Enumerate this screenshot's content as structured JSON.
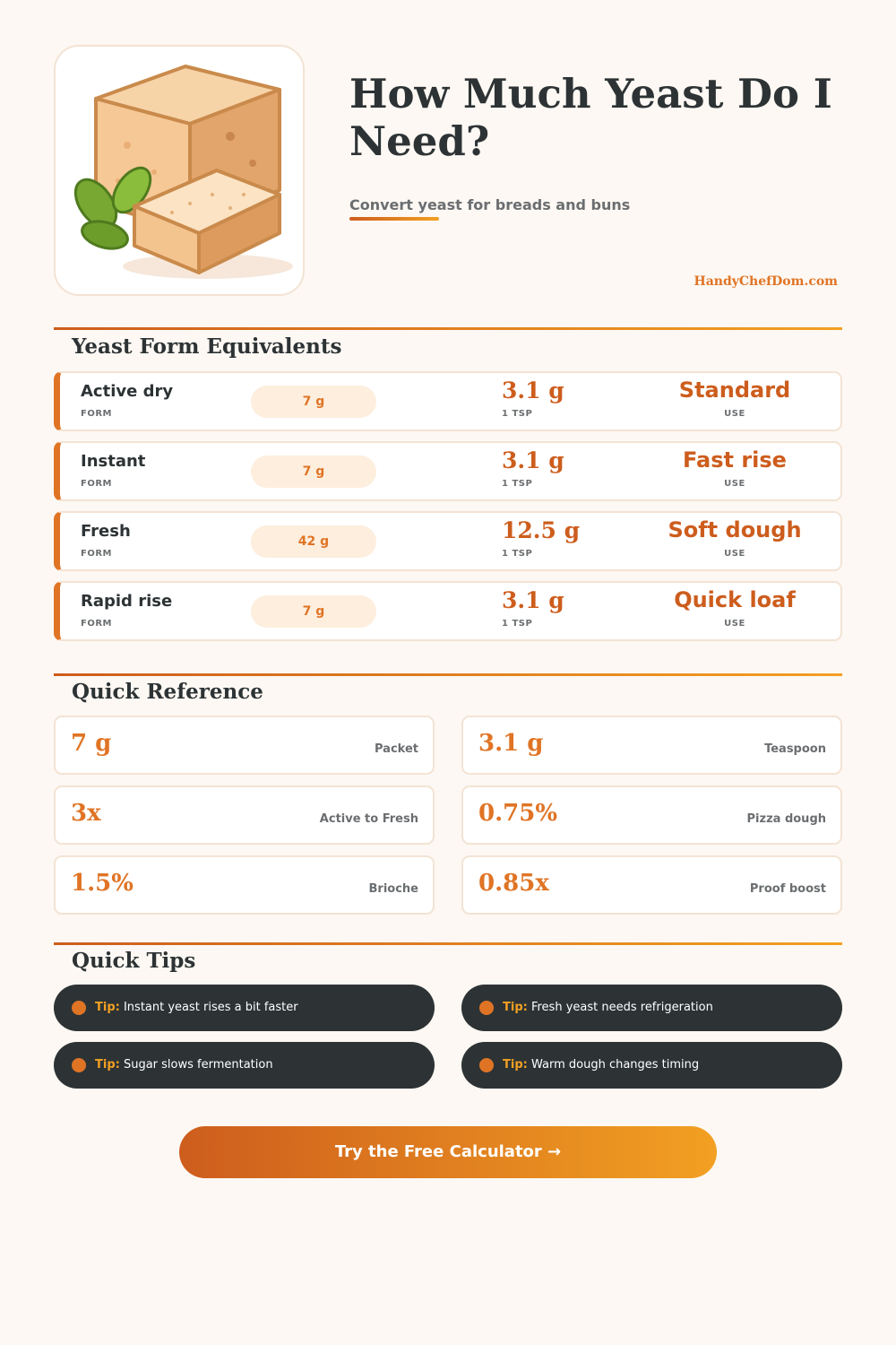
{
  "header": {
    "title": "How Much Yeast Do I Need?",
    "subtitle": "Convert yeast for breads and buns",
    "brand": "HandyChefDom.com"
  },
  "equivalents": {
    "title": "Yeast Form Equivalents",
    "rows": [
      {
        "form": "Active dry",
        "form_caption": "FORM",
        "packet": "7 g",
        "tsp_value": "3.1 g",
        "tsp_caption": "1 TSP",
        "use": "Standard",
        "use_caption": "USE"
      },
      {
        "form": "Instant",
        "form_caption": "FORM",
        "packet": "7 g",
        "tsp_value": "3.1 g",
        "tsp_caption": "1 TSP",
        "use": "Fast rise",
        "use_caption": "USE"
      },
      {
        "form": "Fresh",
        "form_caption": "FORM",
        "packet": "42 g",
        "tsp_value": "12.5 g",
        "tsp_caption": "1 TSP",
        "use": "Soft dough",
        "use_caption": "USE"
      },
      {
        "form": "Rapid rise",
        "form_caption": "FORM",
        "packet": "7 g",
        "tsp_value": "3.1 g",
        "tsp_caption": "1 TSP",
        "use": "Quick loaf",
        "use_caption": "USE"
      }
    ]
  },
  "reference": {
    "title": "Quick Reference",
    "items": [
      {
        "value": "7 g",
        "label": "Packet"
      },
      {
        "value": "3.1 g",
        "label": "Teaspoon"
      },
      {
        "value": "3x",
        "label": "Active to Fresh"
      },
      {
        "value": "0.75%",
        "label": "Pizza dough"
      },
      {
        "value": "1.5%",
        "label": "Brioche"
      },
      {
        "value": "0.85x",
        "label": "Proof boost"
      }
    ]
  },
  "tips": {
    "title": "Quick Tips",
    "prefix": "Tip:",
    "items": [
      "Instant yeast rises a bit faster",
      "Fresh yeast needs refrigeration",
      "Sugar slows fermentation",
      "Warm dough changes timing"
    ]
  },
  "cta": {
    "label": "Try the Free Calculator →"
  },
  "colors": {
    "accent": "#e07425",
    "accent_dark": "#cd5d1d",
    "accent_light": "#f2a022",
    "dark": "#2d3335",
    "background": "#fdf8f3"
  },
  "icons": {
    "hero": "yeast-block-illustration",
    "tip_bullet": "dot-icon"
  }
}
